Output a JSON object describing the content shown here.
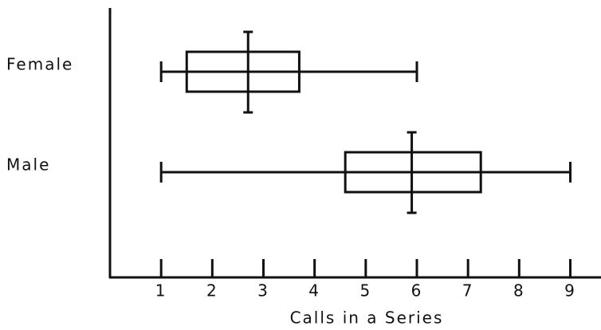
{
  "chart_data": {
    "type": "box",
    "xlabel": "Calls in a Series",
    "categories": [
      "Female",
      "Male"
    ],
    "min": [
      1,
      1
    ],
    "q1": [
      1.5,
      4.6
    ],
    "median": [
      2.7,
      5.9
    ],
    "q3": [
      3.7,
      7.25
    ],
    "max": [
      6,
      9
    ],
    "color": "#111111",
    "xlim": [
      0,
      9.6
    ],
    "xticks": [
      1,
      2,
      3,
      4,
      5,
      6,
      7,
      8,
      9
    ]
  }
}
